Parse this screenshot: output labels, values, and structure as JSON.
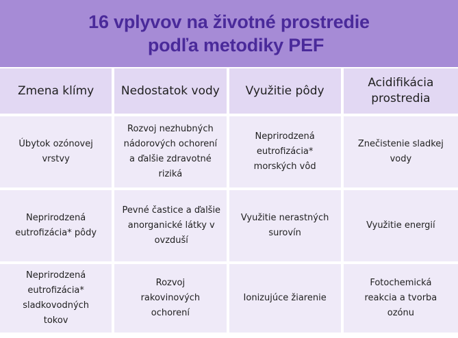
{
  "title": {
    "line1": "16 vplyvov na životné prostredie",
    "line2": "podľa metodiky PEF"
  },
  "colors": {
    "title_band": "#a68bd6",
    "title_text": "#4a2a9a",
    "header_bg": "#e2d8f3",
    "cell_bg": "#efeaf8"
  },
  "table": {
    "headers": [
      "Zmena klímy",
      "Nedostatok vody",
      "Využitie pôdy",
      "Acidifikácia prostredia"
    ],
    "rows": [
      [
        "Úbytok ozónovej vrstvy",
        "Rozvoj nezhubných nádorových ochorení a ďalšie zdravotné riziká",
        "Neprirodzená eutrofizácia* morských vôd",
        "Znečistenie sladkej vody"
      ],
      [
        "Neprirodzená eutrofizácia* pôdy",
        "Pevné častice a ďalšie anorganické látky v ovzduší",
        "Využitie nerastných surovín",
        "Využitie energií"
      ],
      [
        "Neprirodzená eutrofizácia* sladkovodných tokov",
        "Rozvoj rakovinových ochorení",
        "Ionizujúce žiarenie",
        "Fotochemická reakcia a tvorba ozónu"
      ]
    ]
  }
}
